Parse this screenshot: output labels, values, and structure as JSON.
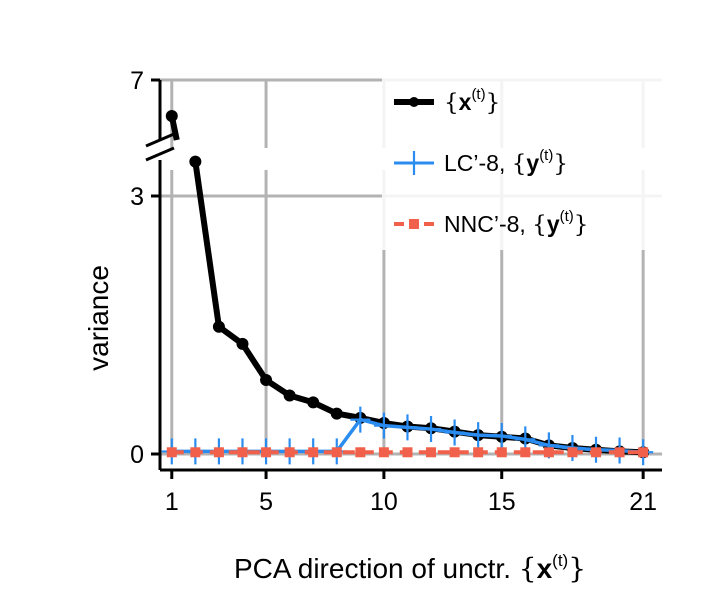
{
  "chart_data": {
    "type": "line",
    "xlabel": "PCA direction of unctr. ",
    "xlabel_math": {
      "open": "{",
      "var": "x",
      "sup": "(t)",
      "close": "}"
    },
    "ylabel": "variance",
    "x_ticks": [
      1,
      5,
      10,
      15,
      21
    ],
    "x_tick_labels": [
      "1",
      "5",
      "10",
      "15",
      "21"
    ],
    "y_ticks": [
      0,
      3,
      7
    ],
    "y_tick_labels": [
      "0",
      "3",
      "7"
    ],
    "xlim": [
      0.5,
      21.8
    ],
    "ylim_lower": [
      -0.15,
      3
    ],
    "ylim_upper": [
      6,
      7
    ],
    "broken_axis": true,
    "grid": true,
    "legend_position": "top-right",
    "x": [
      1,
      2,
      3,
      4,
      5,
      6,
      7,
      8,
      9,
      10,
      11,
      12,
      13,
      14,
      15,
      16,
      17,
      18,
      19,
      20,
      21
    ],
    "series": [
      {
        "name": "",
        "legend_var": "x",
        "color": "#000000",
        "marker": "circle",
        "line": "solid",
        "values": [
          6.4,
          3.4,
          1.48,
          1.28,
          0.86,
          0.68,
          0.6,
          0.47,
          0.42,
          0.36,
          0.32,
          0.3,
          0.26,
          0.22,
          0.2,
          0.18,
          0.1,
          0.07,
          0.05,
          0.03,
          0.02
        ]
      },
      {
        "name": "LC’-8, ",
        "legend_var": "y",
        "color": "#2b8cf0",
        "marker": "plus",
        "line": "solid",
        "values": [
          0.03,
          0.03,
          0.03,
          0.03,
          0.03,
          0.03,
          0.03,
          0.03,
          0.4,
          0.33,
          0.31,
          0.29,
          0.25,
          0.22,
          0.21,
          0.17,
          0.1,
          0.07,
          0.05,
          0.04,
          0.02
        ]
      },
      {
        "name": "NNC’-8, ",
        "legend_var": "y",
        "color": "#f0604a",
        "marker": "square",
        "line": "dashed",
        "values": [
          0.02,
          0.02,
          0.02,
          0.02,
          0.02,
          0.02,
          0.02,
          0.02,
          0.02,
          0.02,
          0.02,
          0.02,
          0.02,
          0.02,
          0.02,
          0.02,
          0.02,
          0.02,
          0.02,
          0.02,
          0.02
        ]
      }
    ],
    "legend_math": {
      "open": "{",
      "sup": "(t)",
      "close": "}"
    }
  }
}
